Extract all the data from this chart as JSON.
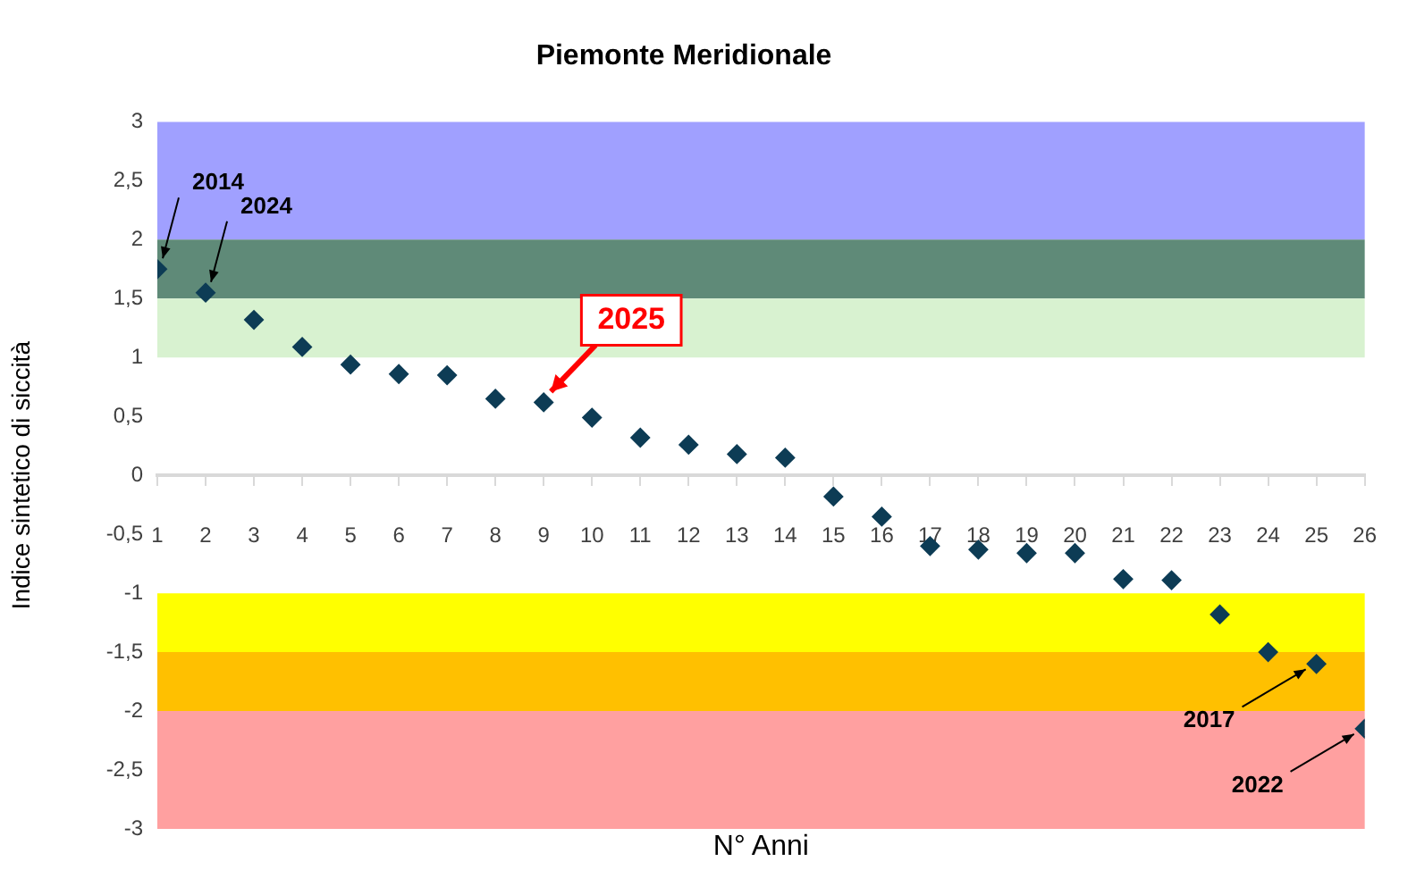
{
  "chart_data": {
    "type": "scatter",
    "title": "Piemonte Meridionale",
    "xlabel": "N° Anni",
    "ylabel": "Indice sintetico di siccità",
    "x": [
      1,
      2,
      3,
      4,
      5,
      6,
      7,
      8,
      9,
      10,
      11,
      12,
      13,
      14,
      15,
      16,
      17,
      18,
      19,
      20,
      21,
      22,
      23,
      24,
      25,
      26
    ],
    "values": [
      1.75,
      1.55,
      1.32,
      1.09,
      0.94,
      0.86,
      0.85,
      0.65,
      0.62,
      0.49,
      0.32,
      0.26,
      0.18,
      0.15,
      -0.18,
      -0.35,
      -0.6,
      -0.63,
      -0.66,
      -0.66,
      -0.88,
      -0.89,
      -1.18,
      -1.5,
      -1.6,
      -2.15
    ],
    "color": "#0d3c55",
    "marker": "diamond",
    "xlim": [
      1,
      26
    ],
    "xticks": [
      1,
      2,
      3,
      4,
      5,
      6,
      7,
      8,
      9,
      10,
      11,
      12,
      13,
      14,
      15,
      16,
      17,
      18,
      19,
      20,
      21,
      22,
      23,
      24,
      25,
      26
    ],
    "ylim": [
      -3,
      3
    ],
    "yticks": [
      {
        "value": -3,
        "label": "-3"
      },
      {
        "value": -2.5,
        "label": "-2,5"
      },
      {
        "value": -2,
        "label": "-2"
      },
      {
        "value": -1.5,
        "label": "-1,5"
      },
      {
        "value": -1,
        "label": "-1"
      },
      {
        "value": -0.5,
        "label": "-0,5"
      },
      {
        "value": 0,
        "label": "0"
      },
      {
        "value": 0.5,
        "label": "0,5"
      },
      {
        "value": 1,
        "label": "1"
      },
      {
        "value": 1.5,
        "label": "1,5"
      },
      {
        "value": 2,
        "label": "2"
      },
      {
        "value": 2.5,
        "label": "2,5"
      },
      {
        "value": 3,
        "label": "3"
      }
    ],
    "bands": [
      {
        "axis": "y",
        "from": 2,
        "to": 3,
        "color": "#a0a0ff"
      },
      {
        "axis": "y",
        "from": 1.5,
        "to": 2,
        "color": "#5f8a78"
      },
      {
        "axis": "y",
        "from": 1,
        "to": 1.5,
        "color": "#d8f2d0"
      },
      {
        "axis": "y",
        "from": -1.5,
        "to": -1,
        "color": "#ffff00"
      },
      {
        "axis": "y",
        "from": -2,
        "to": -1.5,
        "color": "#ffc000"
      },
      {
        "axis": "y",
        "from": -3,
        "to": -2,
        "color": "#ffa0a0"
      }
    ],
    "annotations": [
      {
        "text": "2014",
        "x": 1,
        "y": 1.75
      },
      {
        "text": "2024",
        "x": 2,
        "y": 1.55
      },
      {
        "text": "2017",
        "x": 25,
        "y": -1.6
      },
      {
        "text": "2022",
        "x": 26,
        "y": -2.15
      },
      {
        "text": "2025",
        "x": 9,
        "y": 0.62
      }
    ],
    "legend": false,
    "grid": false
  }
}
